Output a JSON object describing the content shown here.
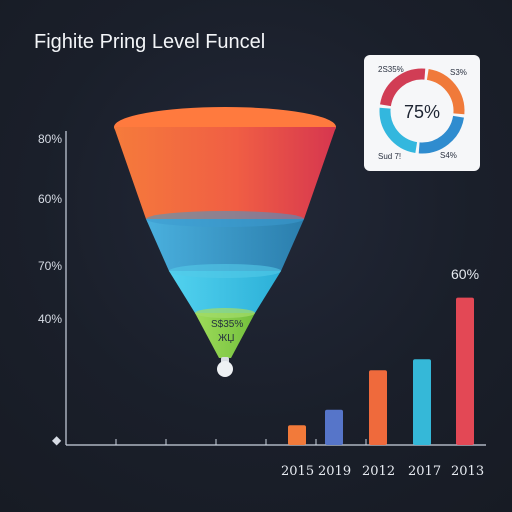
{
  "chart_data": [
    {
      "type": "funnel",
      "title": "Fighite Pring Level Funcel",
      "y_axis_labels": [
        "80%",
        "60%",
        "70%",
        "40%",
        "◆"
      ],
      "segments": [
        {
          "color": "#f26b3c"
        },
        {
          "color": "#2b9ac9"
        },
        {
          "color": "#34bfe0"
        },
        {
          "color": "#8bd154"
        }
      ],
      "bottom_segment_labels": [
        "S$35%",
        "ЖЏ"
      ]
    },
    {
      "type": "bar",
      "categories": [
        "2015",
        "2019",
        "2012",
        "2017",
        "2013"
      ],
      "values": [
        9,
        16,
        34,
        39,
        67
      ],
      "colors": [
        "#f27a3a",
        "#5675c9",
        "#ef6a3c",
        "#35b8d8",
        "#e34855"
      ],
      "top_value_label": "60%",
      "ylim": [
        0,
        100
      ]
    },
    {
      "type": "pie",
      "center_label": "75%",
      "segments": [
        {
          "label": "2S35%",
          "value": 25,
          "color": "#d13d55"
        },
        {
          "label": "S3%",
          "value": 25,
          "color": "#f07a3a"
        },
        {
          "label": "S4%",
          "value": 25,
          "color": "#2f8ccf"
        },
        {
          "label": "Sud 7!",
          "value": 25,
          "color": "#33b7de"
        }
      ]
    }
  ]
}
